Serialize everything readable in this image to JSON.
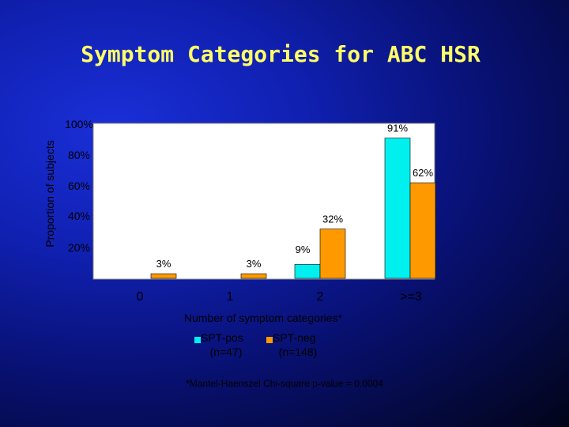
{
  "chart_data": {
    "type": "bar",
    "title": "Symptom Categories for ABC HSR",
    "ylabel": "Proportion of subjects",
    "xlabel": "Number of symptom categories*",
    "categories": [
      "0",
      "1",
      "2",
      ">=3"
    ],
    "series": [
      {
        "name": "SPT-pos",
        "sub": "(n=47)",
        "color": "#00f0f0",
        "values": [
          0,
          0,
          9,
          91
        ],
        "labels": [
          "",
          "",
          "",
          "91%"
        ]
      },
      {
        "name": "SPT-neg",
        "sub": "(n=148)",
        "color": "#ff9900",
        "values": [
          3,
          3,
          32,
          62
        ],
        "labels": [
          "3%",
          "3%",
          "32%",
          "62%"
        ]
      }
    ],
    "extra_labels": [
      {
        "category": "2",
        "text": "9%"
      }
    ],
    "ylim": [
      0,
      100
    ],
    "yticks": [
      "20%",
      "40%",
      "60%",
      "80%",
      "100%"
    ],
    "legend": "bottom",
    "grid": false,
    "footnote": "*Mantel-Haenszel Chi-square p-value = 0.0004",
    "colors": {
      "plot_bg": "#ffffff",
      "title": "#ffff66",
      "text": "#000000"
    }
  }
}
